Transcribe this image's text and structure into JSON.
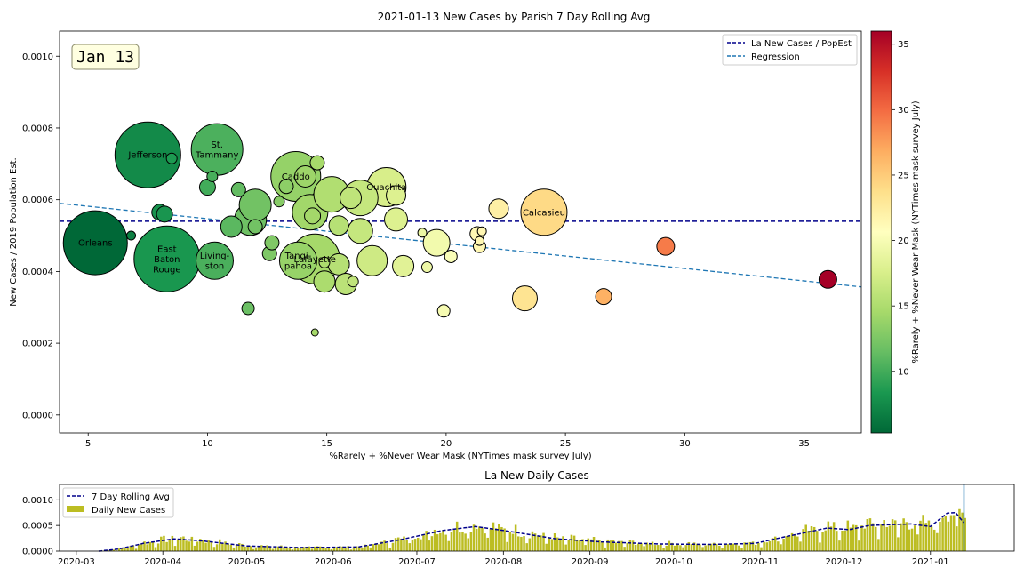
{
  "chart_data": [
    {
      "type": "scatter",
      "title": "2021-01-13 New Cases by Parish 7 Day Rolling Avg",
      "xlabel": "%Rarely + %Never Wear Mask (NYTimes mask survey July)",
      "ylabel": "New Cases / 2019 Population Est.",
      "colorbar_label": "%Rarely + %Never Wear Mask (NYTimes mask survey July)",
      "colorbar_range": [
        5.3,
        36
      ],
      "colorbar_ticks": [
        "10",
        "15",
        "20",
        "25",
        "30",
        "35"
      ],
      "colorbar_tick_values": [
        10,
        15,
        20,
        25,
        30,
        35
      ],
      "colormap": [
        "#006837",
        "#1a9850",
        "#66bd63",
        "#a6d96a",
        "#d9ef8b",
        "#ffffbf",
        "#fee08b",
        "#fdae61",
        "#f46d43",
        "#d73027",
        "#a50026"
      ],
      "xlim": [
        3.8,
        37.4
      ],
      "ylim": [
        -5e-05,
        0.00107
      ],
      "x_ticks": [
        "5",
        "10",
        "15",
        "20",
        "25",
        "30",
        "35"
      ],
      "x_tick_values": [
        5,
        10,
        15,
        20,
        25,
        30,
        35
      ],
      "y_ticks": [
        "0.0000",
        "0.0002",
        "0.0004",
        "0.0006",
        "0.0008",
        "0.0010"
      ],
      "y_tick_values": [
        0,
        0.0002,
        0.0004,
        0.0006,
        0.0008,
        0.001
      ],
      "date_box": "Jan 13",
      "legend": {
        "position": "top-right",
        "entries": [
          {
            "label": "La New Cases / PopEst",
            "color": "#00008b",
            "style": "dashed"
          },
          {
            "label": "Regression",
            "color": "#1f77b4",
            "style": "dashed"
          }
        ]
      },
      "reference_line_y": 0.00054,
      "regression": {
        "x": [
          3.8,
          37.4
        ],
        "y": [
          0.00059,
          0.000357
        ]
      },
      "points": [
        {
          "name": "Orleans",
          "x": 5.3,
          "y": 0.00048,
          "r": 36
        },
        {
          "name": "Jefferson",
          "x": 7.5,
          "y": 0.000725,
          "r": 37
        },
        {
          "name": "East\nBaton\nRouge",
          "x": 8.3,
          "y": 0.000435,
          "r": 37
        },
        {
          "name": "St.\nTammany",
          "x": 10.4,
          "y": 0.00074,
          "r": 29
        },
        {
          "name": "Living-\nston",
          "x": 10.3,
          "y": 0.00043,
          "r": 21
        },
        {
          "name": "Caddo",
          "x": 13.7,
          "y": 0.000665,
          "r": 28
        },
        {
          "name": "Lafayette",
          "x": 14.5,
          "y": 0.000435,
          "r": 28
        },
        {
          "name": "Tangi-\npahoa",
          "x": 13.8,
          "y": 0.00043,
          "r": 21
        },
        {
          "name": "Ouachita",
          "x": 17.5,
          "y": 0.000635,
          "r": 22
        },
        {
          "name": "Calcasieu",
          "x": 24.1,
          "y": 0.000565,
          "r": 26
        },
        {
          "name": "",
          "x": 6.8,
          "y": 0.0005,
          "r": 5
        },
        {
          "name": "",
          "x": 8.0,
          "y": 0.000565,
          "r": 9
        },
        {
          "name": "",
          "x": 8.2,
          "y": 0.00056,
          "r": 9
        },
        {
          "name": "",
          "x": 8.5,
          "y": 0.000715,
          "r": 6
        },
        {
          "name": "",
          "x": 10.0,
          "y": 0.000635,
          "r": 9
        },
        {
          "name": "",
          "x": 10.2,
          "y": 0.000665,
          "r": 6
        },
        {
          "name": "",
          "x": 11.0,
          "y": 0.000525,
          "r": 12
        },
        {
          "name": "",
          "x": 11.3,
          "y": 0.000628,
          "r": 8
        },
        {
          "name": "",
          "x": 11.8,
          "y": 0.000545,
          "r": 18
        },
        {
          "name": "",
          "x": 12.0,
          "y": 0.000585,
          "r": 18
        },
        {
          "name": "",
          "x": 12.0,
          "y": 0.000525,
          "r": 8
        },
        {
          "name": "",
          "x": 11.7,
          "y": 0.000297,
          "r": 7
        },
        {
          "name": "",
          "x": 12.6,
          "y": 0.00045,
          "r": 8
        },
        {
          "name": "",
          "x": 12.7,
          "y": 0.00048,
          "r": 8
        },
        {
          "name": "",
          "x": 13.0,
          "y": 0.000595,
          "r": 6
        },
        {
          "name": "",
          "x": 13.3,
          "y": 0.000637,
          "r": 8
        },
        {
          "name": "",
          "x": 14.1,
          "y": 0.000665,
          "r": 12
        },
        {
          "name": "",
          "x": 14.3,
          "y": 0.000565,
          "r": 20
        },
        {
          "name": "",
          "x": 14.4,
          "y": 0.000555,
          "r": 9
        },
        {
          "name": "",
          "x": 14.5,
          "y": 0.00023,
          "r": 4
        },
        {
          "name": "",
          "x": 14.6,
          "y": 0.000703,
          "r": 8
        },
        {
          "name": "",
          "x": 14.9,
          "y": 0.000425,
          "r": 6
        },
        {
          "name": "",
          "x": 15.2,
          "y": 0.000615,
          "r": 20
        },
        {
          "name": "",
          "x": 14.9,
          "y": 0.000372,
          "r": 12
        },
        {
          "name": "",
          "x": 15.5,
          "y": 0.000528,
          "r": 11
        },
        {
          "name": "",
          "x": 15.5,
          "y": 0.00042,
          "r": 12
        },
        {
          "name": "",
          "x": 15.8,
          "y": 0.000365,
          "r": 12
        },
        {
          "name": "",
          "x": 16.0,
          "y": 0.000605,
          "r": 12
        },
        {
          "name": "",
          "x": 16.1,
          "y": 0.000372,
          "r": 6
        },
        {
          "name": "",
          "x": 16.4,
          "y": 0.000513,
          "r": 14
        },
        {
          "name": "",
          "x": 16.4,
          "y": 0.000605,
          "r": 20
        },
        {
          "name": "",
          "x": 16.9,
          "y": 0.00043,
          "r": 17
        },
        {
          "name": "",
          "x": 17.9,
          "y": 0.000545,
          "r": 13
        },
        {
          "name": "",
          "x": 17.9,
          "y": 0.000612,
          "r": 11
        },
        {
          "name": "",
          "x": 18.2,
          "y": 0.000415,
          "r": 12
        },
        {
          "name": "",
          "x": 19.0,
          "y": 0.000508,
          "r": 5
        },
        {
          "name": "",
          "x": 19.2,
          "y": 0.000412,
          "r": 6
        },
        {
          "name": "",
          "x": 19.6,
          "y": 0.00048,
          "r": 15
        },
        {
          "name": "",
          "x": 19.9,
          "y": 0.00029,
          "r": 7
        },
        {
          "name": "",
          "x": 20.2,
          "y": 0.000442,
          "r": 7
        },
        {
          "name": "",
          "x": 21.3,
          "y": 0.000505,
          "r": 8
        },
        {
          "name": "",
          "x": 21.4,
          "y": 0.00047,
          "r": 7
        },
        {
          "name": "",
          "x": 21.4,
          "y": 0.000485,
          "r": 5
        },
        {
          "name": "",
          "x": 21.5,
          "y": 0.000512,
          "r": 5
        },
        {
          "name": "",
          "x": 22.2,
          "y": 0.000575,
          "r": 11
        },
        {
          "name": "",
          "x": 23.3,
          "y": 0.000325,
          "r": 14
        },
        {
          "name": "",
          "x": 26.6,
          "y": 0.00033,
          "r": 9
        },
        {
          "name": "",
          "x": 29.2,
          "y": 0.00047,
          "r": 10
        },
        {
          "name": "",
          "x": 36.0,
          "y": 0.000378,
          "r": 10
        }
      ]
    },
    {
      "type": "bar",
      "title": "La New Daily Cases",
      "x_start": "2020-02-24",
      "x_end": "2021-01-31",
      "current_date": "2021-01-13",
      "ylim": [
        0,
        0.0013
      ],
      "y_ticks": [
        "0.0000",
        "0.0005",
        "0.0010"
      ],
      "y_tick_values": [
        0,
        0.0005,
        0.001
      ],
      "x_ticks": [
        "2020-03",
        "2020-04",
        "2020-05",
        "2020-06",
        "2020-07",
        "2020-08",
        "2020-09",
        "2020-10",
        "2020-11",
        "2020-12",
        "2021-01"
      ],
      "x_tick_dates": [
        "2020-03-01",
        "2020-04-01",
        "2020-05-01",
        "2020-06-01",
        "2020-07-01",
        "2020-08-01",
        "2020-09-01",
        "2020-10-01",
        "2020-11-01",
        "2020-12-01",
        "2021-01-01"
      ],
      "legend": {
        "position": "top-left",
        "entries": [
          {
            "label": "7 Day Rolling Avg",
            "color": "#00008b",
            "style": "dashed"
          },
          {
            "label": "Daily New Cases",
            "color": "#bcbd22",
            "style": "patch"
          }
        ]
      },
      "rolling_avg_knots": [
        {
          "date": "2020-03-09",
          "value": 0
        },
        {
          "date": "2020-03-16",
          "value": 4e-05
        },
        {
          "date": "2020-03-25",
          "value": 0.00015
        },
        {
          "date": "2020-04-05",
          "value": 0.00024
        },
        {
          "date": "2020-04-15",
          "value": 0.0002
        },
        {
          "date": "2020-05-01",
          "value": 0.0001
        },
        {
          "date": "2020-05-20",
          "value": 7e-05
        },
        {
          "date": "2020-06-10",
          "value": 8e-05
        },
        {
          "date": "2020-06-25",
          "value": 0.00022
        },
        {
          "date": "2020-07-10",
          "value": 0.0004
        },
        {
          "date": "2020-07-22",
          "value": 0.00048
        },
        {
          "date": "2020-08-05",
          "value": 0.00037
        },
        {
          "date": "2020-08-20",
          "value": 0.00024
        },
        {
          "date": "2020-09-05",
          "value": 0.00018
        },
        {
          "date": "2020-09-25",
          "value": 0.00014
        },
        {
          "date": "2020-10-15",
          "value": 0.00013
        },
        {
          "date": "2020-10-30",
          "value": 0.00015
        },
        {
          "date": "2020-11-10",
          "value": 0.00028
        },
        {
          "date": "2020-11-25",
          "value": 0.00045
        },
        {
          "date": "2020-12-03",
          "value": 0.00042
        },
        {
          "date": "2020-12-10",
          "value": 0.0005
        },
        {
          "date": "2020-12-25",
          "value": 0.00053
        },
        {
          "date": "2021-01-01",
          "value": 0.00048
        },
        {
          "date": "2021-01-07",
          "value": 0.00074
        },
        {
          "date": "2021-01-10",
          "value": 0.00075
        },
        {
          "date": "2021-01-13",
          "value": 0.00055
        }
      ]
    }
  ]
}
